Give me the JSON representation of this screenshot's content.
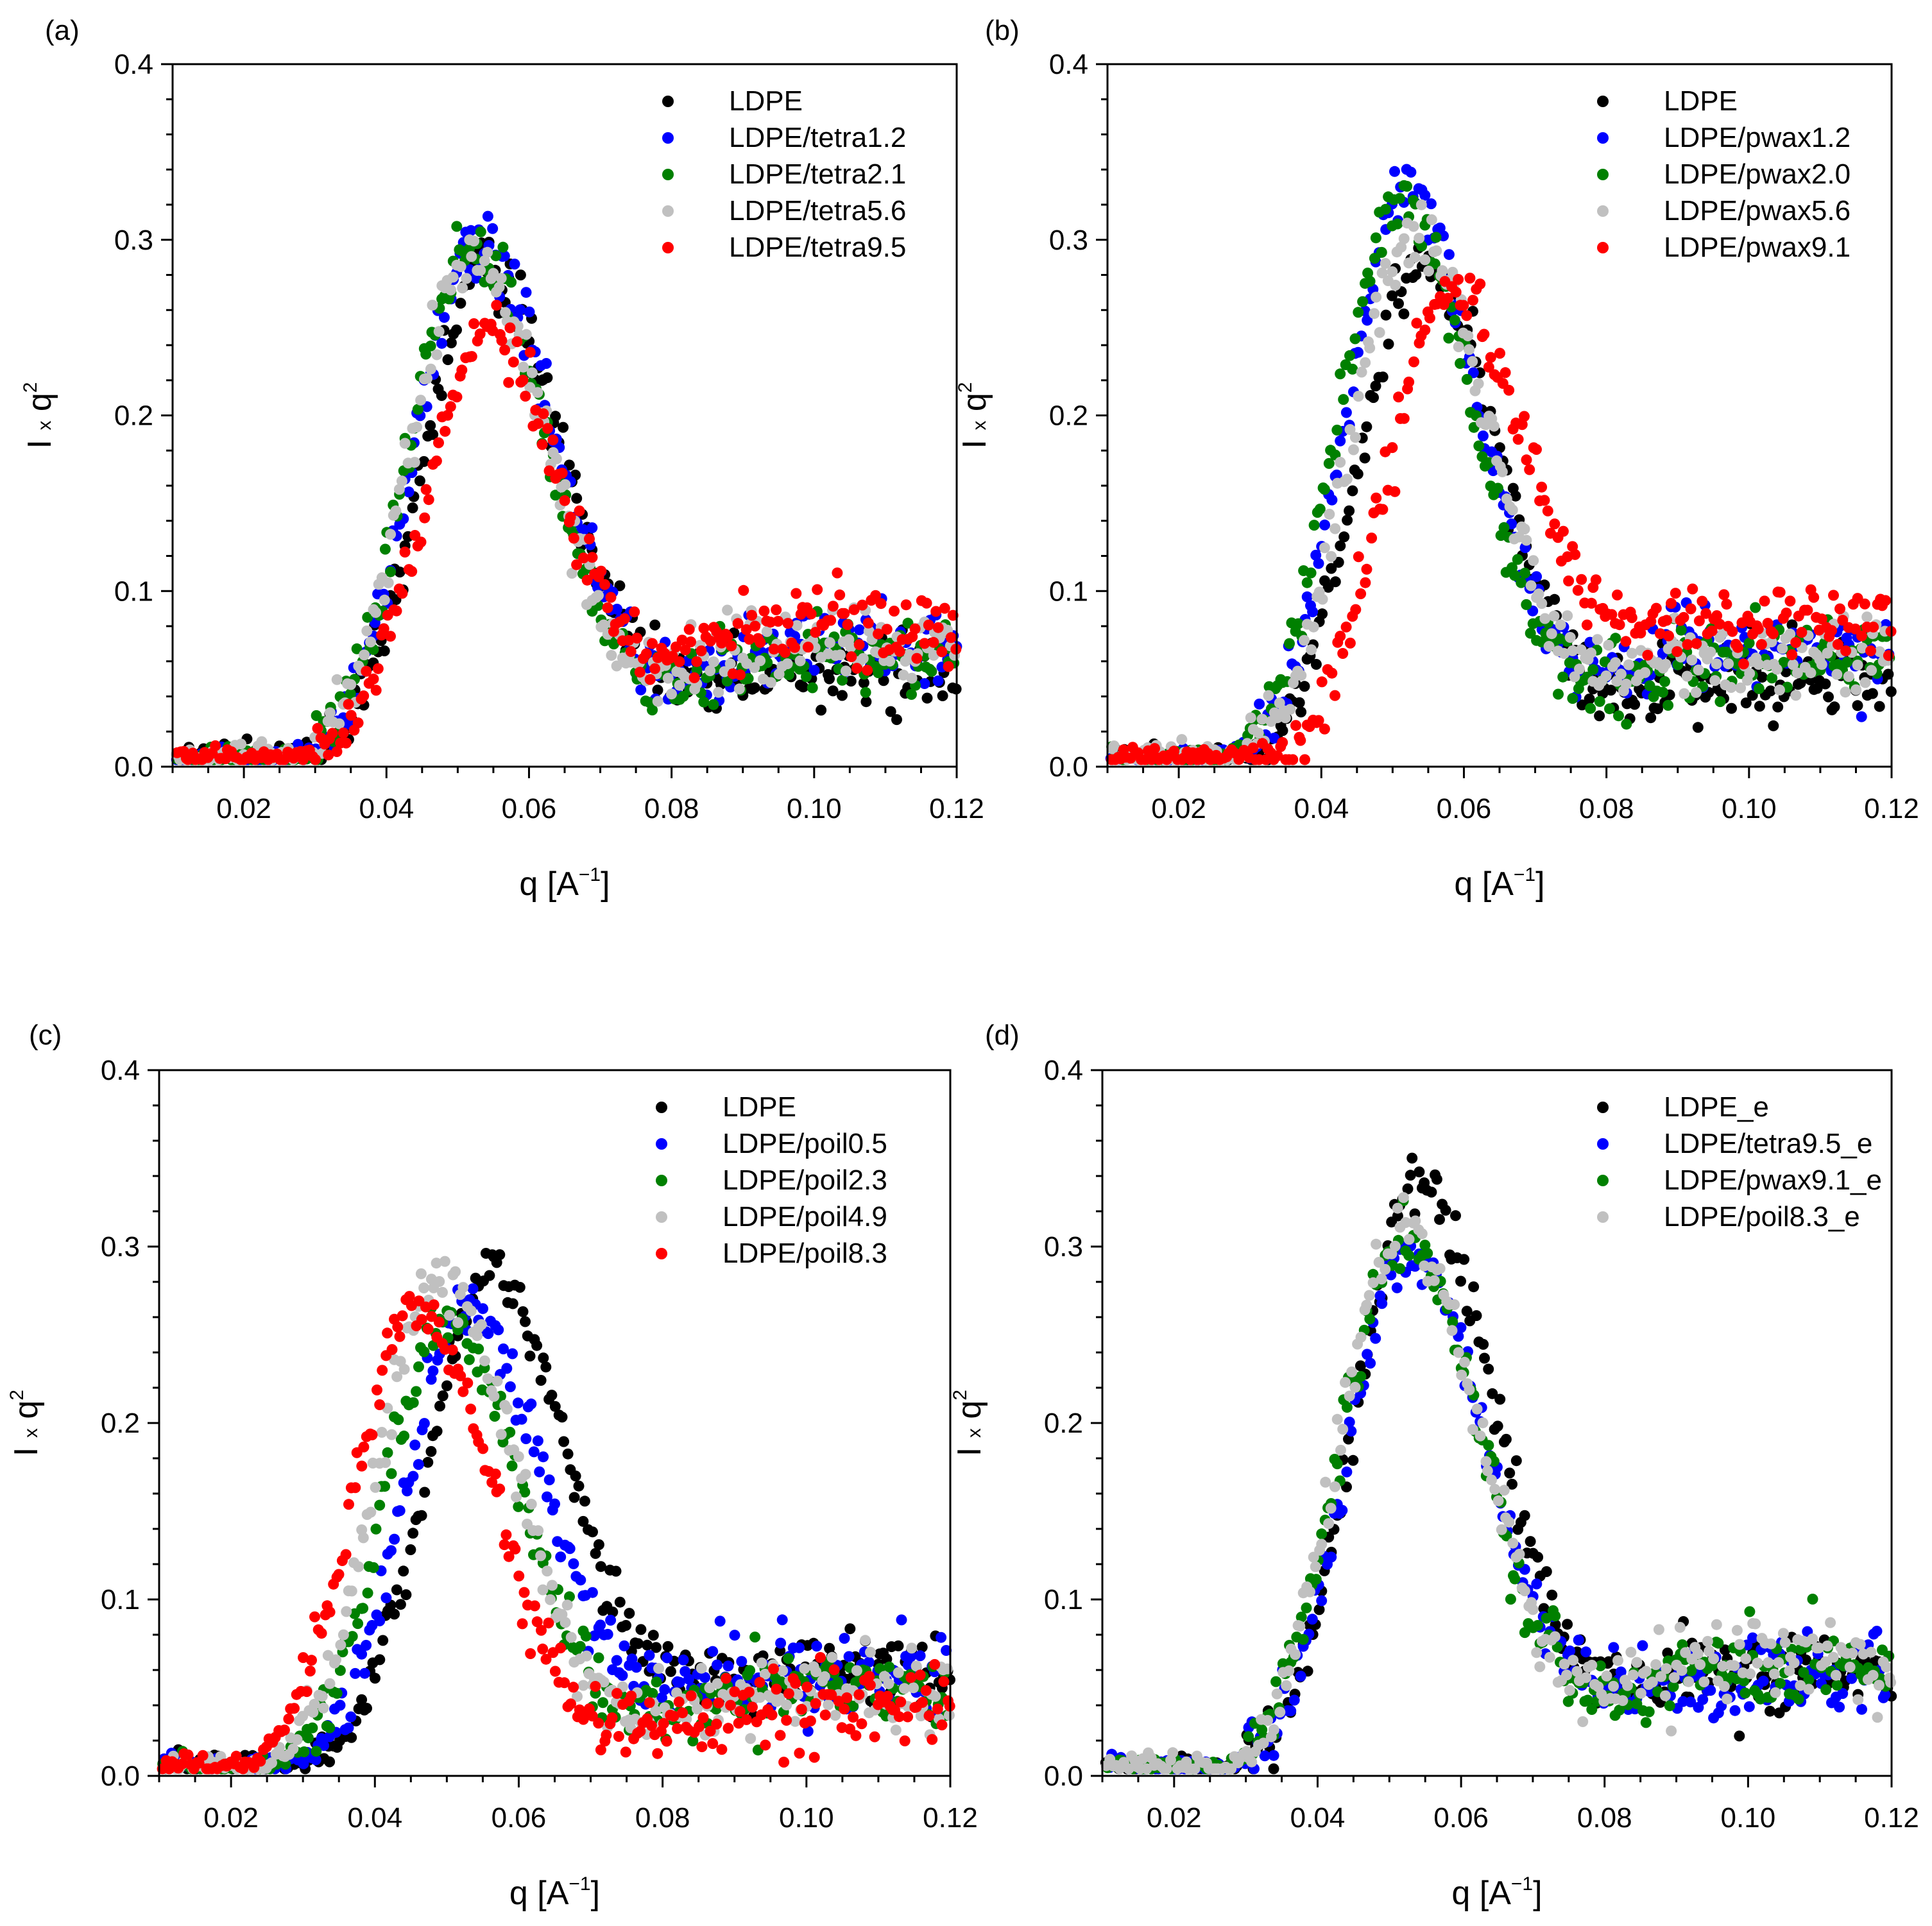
{
  "chart_data": [
    {
      "type": "scatter",
      "panel_label": "(a)",
      "title": "",
      "xlabel": {
        "main": "q [A",
        "sup": "−1",
        "close": "]"
      },
      "ylabel": {
        "main": "I",
        "times": "x",
        "q": "q",
        "sup": "2"
      },
      "xlim": [
        0.01,
        0.12
      ],
      "ylim": [
        0.0,
        0.4
      ],
      "xticks": [
        "0.02",
        "0.04",
        "0.06",
        "0.08",
        "0.10",
        "0.12"
      ],
      "xtick_values": [
        0.02,
        0.04,
        0.06,
        0.08,
        0.1,
        0.12
      ],
      "yticks": [
        "0.0",
        "0.1",
        "0.2",
        "0.3",
        "0.4"
      ],
      "ytick_values": [
        0.0,
        0.1,
        0.2,
        0.3,
        0.4
      ],
      "legend_position": "top-right",
      "series": [
        {
          "name": "LDPE",
          "color": "#000000",
          "peak_q": 0.054,
          "peak": 0.285,
          "high_q_level": 0.055
        },
        {
          "name": "LDPE/tetra1.2",
          "color": "#0000ff",
          "peak_q": 0.053,
          "peak": 0.3,
          "high_q_level": 0.065
        },
        {
          "name": "LDPE/tetra2.1",
          "color": "#008000",
          "peak_q": 0.052,
          "peak": 0.295,
          "high_q_level": 0.062
        },
        {
          "name": "LDPE/tetra5.6",
          "color": "#c0c0c0",
          "peak_q": 0.052,
          "peak": 0.29,
          "high_q_level": 0.068
        },
        {
          "name": "LDPE/tetra9.5",
          "color": "#ff0000",
          "peak_q": 0.054,
          "peak": 0.248,
          "high_q_level": 0.078
        }
      ]
    },
    {
      "type": "scatter",
      "panel_label": "(b)",
      "title": "",
      "xlabel": {
        "main": "q [A",
        "sup": "−1",
        "close": "]"
      },
      "ylabel": {
        "main": "I",
        "times": "x",
        "q": "q",
        "sup": "2"
      },
      "xlim": [
        0.01,
        0.12
      ],
      "ylim": [
        0.0,
        0.4
      ],
      "xticks": [
        "0.02",
        "0.04",
        "0.06",
        "0.08",
        "0.10",
        "0.12"
      ],
      "xtick_values": [
        0.02,
        0.04,
        0.06,
        0.08,
        0.1,
        0.12
      ],
      "yticks": [
        "0.0",
        "0.1",
        "0.2",
        "0.3",
        "0.4"
      ],
      "ytick_values": [
        0.0,
        0.1,
        0.2,
        0.3,
        0.4
      ],
      "legend_position": "top-right",
      "series": [
        {
          "name": "LDPE",
          "color": "#000000",
          "peak_q": 0.054,
          "peak": 0.285,
          "high_q_level": 0.05
        },
        {
          "name": "LDPE/pwax1.2",
          "color": "#0000ff",
          "peak_q": 0.052,
          "peak": 0.322,
          "high_q_level": 0.068
        },
        {
          "name": "LDPE/pwax2.0",
          "color": "#008000",
          "peak_q": 0.051,
          "peak": 0.318,
          "high_q_level": 0.06
        },
        {
          "name": "LDPE/pwax5.6",
          "color": "#c0c0c0",
          "peak_q": 0.053,
          "peak": 0.305,
          "high_q_level": 0.063
        },
        {
          "name": "LDPE/pwax9.1",
          "color": "#ff0000",
          "peak_q": 0.058,
          "peak": 0.272,
          "high_q_level": 0.082
        }
      ]
    },
    {
      "type": "scatter",
      "panel_label": "(c)",
      "title": "",
      "xlabel": {
        "main": "q [A",
        "sup": "−1",
        "close": "]"
      },
      "ylabel": {
        "main": "I",
        "times": "x",
        "q": "q",
        "sup": "2"
      },
      "xlim": [
        0.01,
        0.12
      ],
      "ylim": [
        0.0,
        0.4
      ],
      "xticks": [
        "0.02",
        "0.04",
        "0.06",
        "0.08",
        "0.10",
        "0.12"
      ],
      "xtick_values": [
        0.02,
        0.04,
        0.06,
        0.08,
        0.1,
        0.12
      ],
      "yticks": [
        "0.0",
        "0.1",
        "0.2",
        "0.3",
        "0.4"
      ],
      "ytick_values": [
        0.0,
        0.1,
        0.2,
        0.3,
        0.4
      ],
      "legend_position": "top-right",
      "series": [
        {
          "name": "LDPE",
          "color": "#000000",
          "peak_q": 0.056,
          "peak": 0.285,
          "high_q_level": 0.058
        },
        {
          "name": "LDPE/poil0.5",
          "color": "#0000ff",
          "peak_q": 0.053,
          "peak": 0.262,
          "high_q_level": 0.058
        },
        {
          "name": "LDPE/poil2.3",
          "color": "#008000",
          "peak_q": 0.05,
          "peak": 0.255,
          "high_q_level": 0.052
        },
        {
          "name": "LDPE/poil4.9",
          "color": "#c0c0c0",
          "peak_q": 0.049,
          "peak": 0.278,
          "high_q_level": 0.05
        },
        {
          "name": "LDPE/poil8.3",
          "color": "#ff0000",
          "peak_q": 0.046,
          "peak": 0.262,
          "high_q_level": 0.04
        }
      ]
    },
    {
      "type": "scatter",
      "panel_label": "(d)",
      "title": "",
      "xlabel": {
        "main": "q [A",
        "sup": "−1",
        "close": "]"
      },
      "ylabel": {
        "main": "I",
        "times": "x",
        "q": "q",
        "sup": "2"
      },
      "xlim": [
        0.01,
        0.12
      ],
      "ylim": [
        0.0,
        0.4
      ],
      "xticks": [
        "0.02",
        "0.04",
        "0.06",
        "0.08",
        "0.10",
        "0.12"
      ],
      "xtick_values": [
        0.02,
        0.04,
        0.06,
        0.08,
        0.1,
        0.12
      ],
      "yticks": [
        "0.0",
        "0.1",
        "0.2",
        "0.3",
        "0.4"
      ],
      "ytick_values": [
        0.0,
        0.1,
        0.2,
        0.3,
        0.4
      ],
      "legend_position": "top-right",
      "series": [
        {
          "name": "LDPE_e",
          "color": "#000000",
          "peak_q": 0.054,
          "peak": 0.335,
          "high_q_level": 0.058
        },
        {
          "name": "LDPE/tetra9.5_e",
          "color": "#0000ff",
          "peak_q": 0.053,
          "peak": 0.3,
          "high_q_level": 0.055
        },
        {
          "name": "LDPE/pwax9.1_e",
          "color": "#008000",
          "peak_q": 0.052,
          "peak": 0.305,
          "high_q_level": 0.058
        },
        {
          "name": "LDPE/poil8.3_e",
          "color": "#c0c0c0",
          "peak_q": 0.052,
          "peak": 0.312,
          "high_q_level": 0.066
        }
      ]
    }
  ]
}
